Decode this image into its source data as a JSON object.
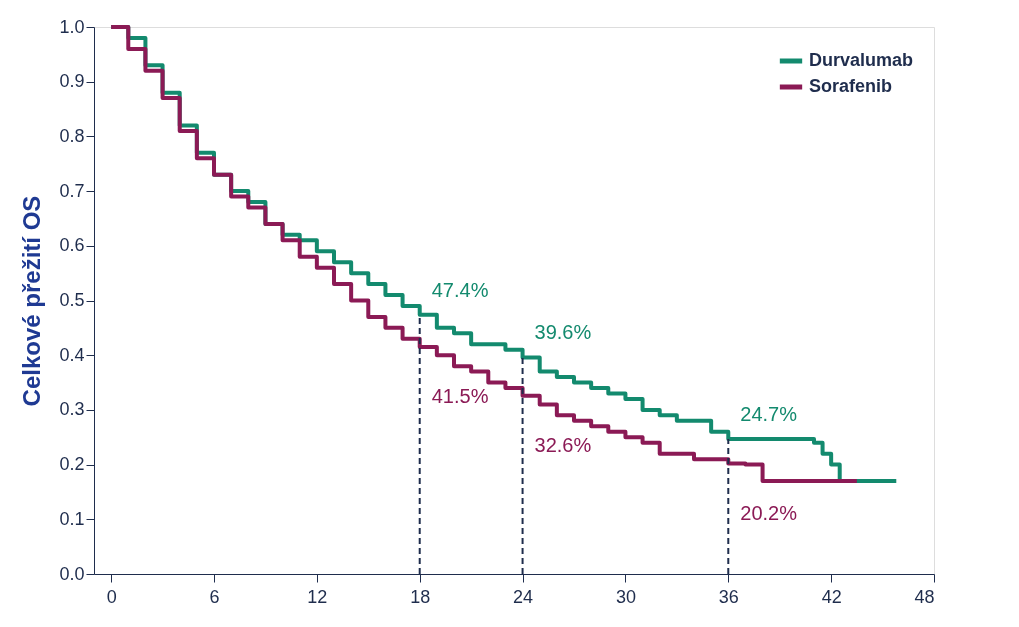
{
  "chart_data": {
    "type": "step",
    "ylabel": "Celkové přežití OS",
    "xlim": [
      -1,
      48
    ],
    "xticks": [
      0,
      6,
      12,
      18,
      24,
      30,
      36,
      42,
      48
    ],
    "ylim": [
      0,
      1
    ],
    "yticks": [
      {
        "value": 0,
        "label": "0.0"
      },
      {
        "value": 0.1,
        "label": "0.1"
      },
      {
        "value": 0.2,
        "label": "0.2"
      },
      {
        "value": 0.3,
        "label": "0.3"
      },
      {
        "value": 0.4,
        "label": "0.4"
      },
      {
        "value": 0.5,
        "label": "0.5"
      },
      {
        "value": 0.6,
        "label": "0.6"
      },
      {
        "value": 0.7,
        "label": "0.7"
      },
      {
        "value": 0.8,
        "label": "0.8"
      },
      {
        "value": 0.9,
        "label": "0.9"
      },
      {
        "value": 1,
        "label": "1.0"
      }
    ],
    "grid": false,
    "legend": "top right",
    "line_style": "solid",
    "series": [
      {
        "name": "Durvalumab",
        "color": "#138a6e",
        "x": [
          0,
          1,
          2,
          3,
          4,
          5,
          6,
          7,
          8,
          9,
          10,
          11,
          12,
          13,
          14,
          15,
          16,
          17,
          18,
          19,
          20,
          21,
          22,
          23,
          24,
          25,
          26,
          27,
          28,
          29,
          30,
          31,
          32,
          33,
          34,
          35,
          36,
          38,
          40,
          41,
          41.5,
          42,
          42.5,
          44,
          45.8
        ],
        "values": [
          1.0,
          0.98,
          0.93,
          0.88,
          0.82,
          0.77,
          0.73,
          0.7,
          0.68,
          0.64,
          0.62,
          0.61,
          0.59,
          0.57,
          0.55,
          0.53,
          0.51,
          0.49,
          0.474,
          0.45,
          0.44,
          0.42,
          0.42,
          0.41,
          0.396,
          0.37,
          0.36,
          0.35,
          0.34,
          0.33,
          0.32,
          0.3,
          0.29,
          0.28,
          0.28,
          0.26,
          0.247,
          0.247,
          0.247,
          0.24,
          0.22,
          0.2,
          0.17,
          0.17,
          0.17
        ]
      },
      {
        "name": "Sorafenib",
        "color": "#8b1a55",
        "x": [
          0,
          1,
          2,
          3,
          4,
          5,
          6,
          7,
          8,
          9,
          10,
          11,
          12,
          13,
          14,
          15,
          16,
          17,
          18,
          19,
          20,
          21,
          22,
          23,
          24,
          25,
          26,
          27,
          28,
          29,
          30,
          31,
          32,
          33,
          34,
          35,
          36,
          37,
          38,
          40,
          43.5
        ],
        "values": [
          1.0,
          0.96,
          0.92,
          0.87,
          0.81,
          0.76,
          0.73,
          0.69,
          0.67,
          0.64,
          0.61,
          0.58,
          0.56,
          0.53,
          0.5,
          0.47,
          0.45,
          0.43,
          0.415,
          0.4,
          0.38,
          0.37,
          0.35,
          0.34,
          0.326,
          0.31,
          0.29,
          0.28,
          0.27,
          0.26,
          0.25,
          0.24,
          0.22,
          0.22,
          0.21,
          0.21,
          0.202,
          0.2,
          0.17,
          0.17,
          0.17
        ]
      }
    ],
    "ref_lines": [
      {
        "axis": "x",
        "value": 18,
        "color": "#1f2d4d",
        "line_style": "dashed"
      },
      {
        "axis": "x",
        "value": 24,
        "color": "#1f2d4d",
        "line_style": "dashed"
      },
      {
        "axis": "x",
        "value": 36,
        "color": "#1f2d4d",
        "line_style": "dashed"
      }
    ],
    "annotations": [
      {
        "text": "47.4%",
        "x": 18,
        "y": 0.474
      },
      {
        "text": "41.5%",
        "x": 18,
        "y": 0.415
      },
      {
        "text": "39.6%",
        "x": 24,
        "y": 0.396
      },
      {
        "text": "32.6%",
        "x": 24,
        "y": 0.326
      },
      {
        "text": "24.7%",
        "x": 36,
        "y": 0.247
      },
      {
        "text": "20.2%",
        "x": 36,
        "y": 0.202
      }
    ]
  }
}
